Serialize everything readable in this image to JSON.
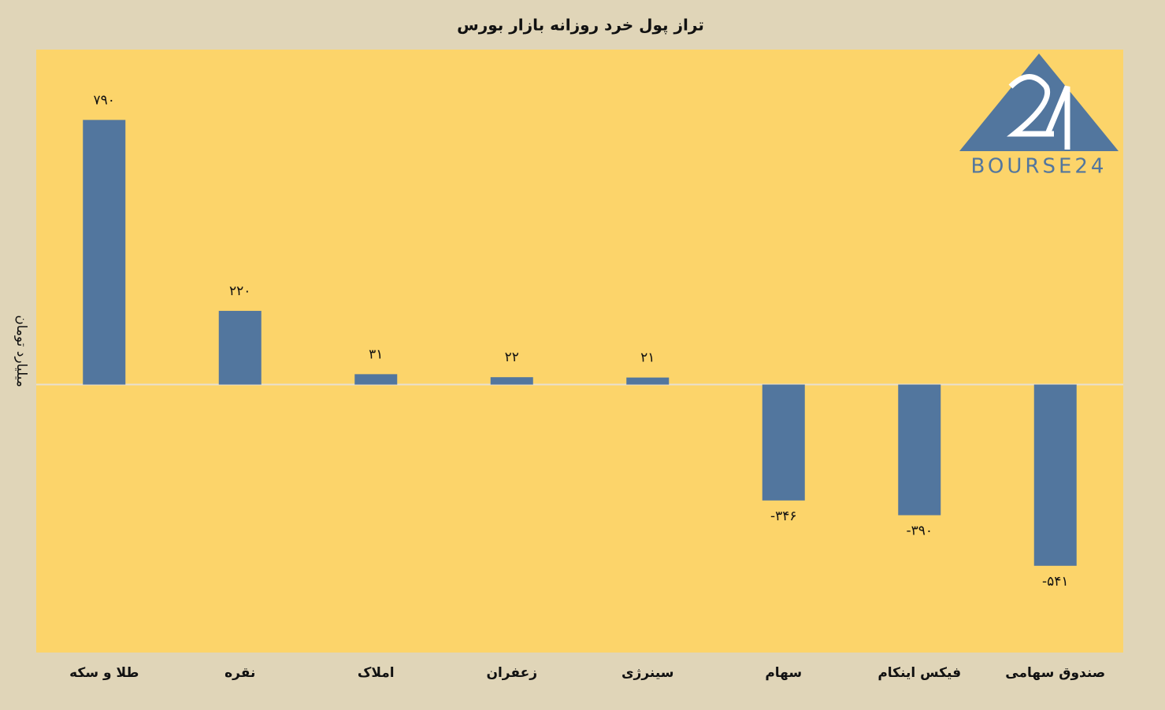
{
  "chart_data": {
    "type": "bar",
    "title": "تراز پول خرد روزانه بازار بورس",
    "y_label": "میلیارد تومان",
    "watermark": "BOURSE24",
    "categories": [
      "طلا و سکه",
      "نقره",
      "املاک",
      "زعفران",
      "سینرژی",
      "سهام",
      "فیکس اینکام",
      "صندوق سهامی"
    ],
    "values": [
      790,
      220,
      31,
      22,
      21,
      -346,
      -390,
      -541
    ],
    "value_labels": [
      "۷۹۰",
      "۲۲۰",
      "۳۱",
      "۲۲",
      "۲۱",
      "-۳۴۶",
      "-۳۹۰",
      "-۵۴۱"
    ],
    "color": "#52769e",
    "ylim": [
      -800,
      1000
    ]
  }
}
